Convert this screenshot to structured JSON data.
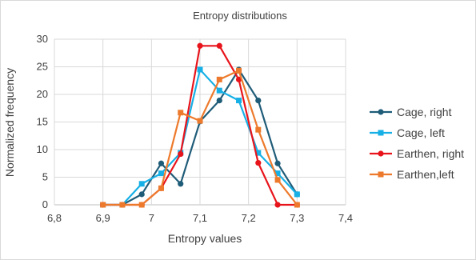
{
  "chart_data": {
    "type": "line",
    "title": "Entropy distributions",
    "xlabel": "Entropy values",
    "ylabel": "Normalized frequency",
    "xlim": [
      6.8,
      7.4
    ],
    "ylim": [
      0,
      30
    ],
    "x_ticks": [
      "6,8",
      "6,9",
      "7",
      "7,1",
      "7,2",
      "7,3",
      "7,4"
    ],
    "y_ticks": [
      "0",
      "5",
      "10",
      "15",
      "20",
      "25",
      "30"
    ],
    "grid": true,
    "legend_position": "right",
    "x": [
      6.9,
      6.94,
      6.98,
      7.02,
      7.06,
      7.1,
      7.14,
      7.18,
      7.22,
      7.26,
      7.3
    ],
    "series": [
      {
        "name": "Cage, right",
        "color": "#1f5c78",
        "marker": "circle",
        "values": [
          0,
          0,
          1.9,
          7.5,
          3.8,
          15.1,
          18.9,
          24.5,
          18.9,
          7.5,
          1.9
        ]
      },
      {
        "name": "Cage, left",
        "color": "#16b0e6",
        "marker": "square",
        "values": [
          0,
          0,
          3.8,
          5.7,
          9.4,
          24.5,
          20.7,
          18.9,
          9.4,
          5.7,
          1.9
        ]
      },
      {
        "name": "Earthen, right",
        "color": "#e8141b",
        "marker": "circle",
        "values": [
          0,
          0,
          0,
          3.0,
          9.2,
          28.8,
          28.8,
          22.7,
          7.6,
          0,
          0
        ]
      },
      {
        "name": "Earthen,left",
        "color": "#ed7a2c",
        "marker": "square",
        "values": [
          0,
          0,
          0,
          3.0,
          16.7,
          15.2,
          22.7,
          24.3,
          13.6,
          4.5,
          0
        ]
      }
    ]
  }
}
